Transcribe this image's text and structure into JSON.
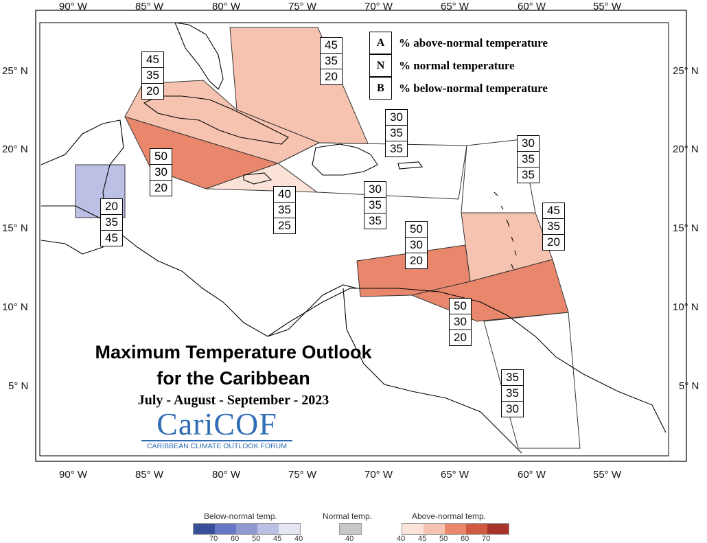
{
  "axes": {
    "lon_labels": [
      "90° W",
      "85° W",
      "80° W",
      "75° W",
      "70° W",
      "65° W",
      "60° W",
      "55° W"
    ],
    "lat_labels": [
      "25° N",
      "20° N",
      "15° N",
      "10° N",
      "5° N"
    ]
  },
  "legend_key": [
    {
      "letter": "A",
      "text": "% above-normal temperature"
    },
    {
      "letter": "N",
      "text": "% normal temperature"
    },
    {
      "letter": "B",
      "text": "% below-normal temperature"
    }
  ],
  "forecast_boxes": [
    {
      "name": "bahamas",
      "values": [
        "45",
        "35",
        "20"
      ]
    },
    {
      "name": "cuba",
      "values": [
        "45",
        "35",
        "20"
      ]
    },
    {
      "name": "cayman",
      "values": [
        "50",
        "30",
        "20"
      ]
    },
    {
      "name": "belize",
      "values": [
        "20",
        "35",
        "45"
      ]
    },
    {
      "name": "jamaica",
      "values": [
        "40",
        "35",
        "25"
      ]
    },
    {
      "name": "hispaniola-north",
      "values": [
        "30",
        "35",
        "35"
      ]
    },
    {
      "name": "hispaniola-south",
      "values": [
        "30",
        "35",
        "35"
      ]
    },
    {
      "name": "leeward",
      "values": [
        "30",
        "35",
        "35"
      ]
    },
    {
      "name": "windward",
      "values": [
        "45",
        "35",
        "20"
      ]
    },
    {
      "name": "abc-islands",
      "values": [
        "50",
        "30",
        "20"
      ]
    },
    {
      "name": "trinidad",
      "values": [
        "50",
        "30",
        "20"
      ]
    },
    {
      "name": "guianas",
      "values": [
        "35",
        "35",
        "30"
      ]
    }
  ],
  "colors": {
    "above_40": "#fbe3da",
    "above_45": "#f6c3b0",
    "above_50": "#e8876b",
    "above_60": "#d05a40",
    "above_70": "#a8332a",
    "below_70": "#3a4f9a",
    "below_60": "#6777c4",
    "below_50": "#9098d0",
    "below_45": "#bcc0e4",
    "below_40": "#e4e6f4",
    "normal_40": "#c8c8c8"
  },
  "title": {
    "line1": "Maximum Temperature Outlook",
    "line2": "for the Caribbean",
    "season": "July - August - September - 2023"
  },
  "logo": {
    "word": "CariCOF",
    "tagline": "CARIBBEAN CLIMATE OUTLOOK FORUM"
  },
  "colorbar": {
    "below_title": "Below-normal temp.",
    "normal_title": "Normal temp.",
    "above_title": "Above-normal temp.",
    "below_ticks": [
      "70",
      "60",
      "50",
      "45",
      "40"
    ],
    "normal_ticks": [
      "40"
    ],
    "above_ticks": [
      "40",
      "45",
      "50",
      "60",
      "70"
    ]
  }
}
